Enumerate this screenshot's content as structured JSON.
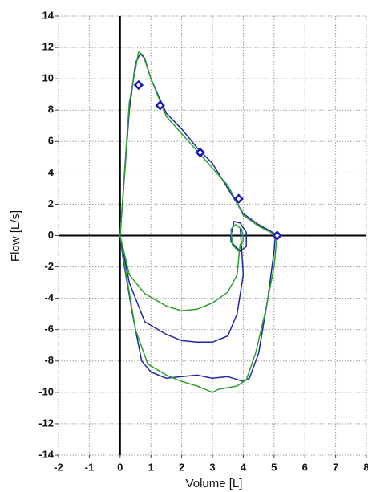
{
  "chart_data": {
    "type": "line",
    "xlabel": "Volume [L]",
    "ylabel": "Flow [L/s]",
    "xlim": [
      -2,
      8
    ],
    "ylim": [
      -14,
      14
    ],
    "xticks": [
      -2,
      -1,
      0,
      1,
      2,
      3,
      4,
      5,
      6,
      7,
      8
    ],
    "yticks": [
      -14,
      -12,
      -10,
      -8,
      -6,
      -4,
      -2,
      0,
      2,
      4,
      6,
      8,
      10,
      12,
      14
    ],
    "grid": true,
    "series": [
      {
        "color": "#1f2a9e",
        "x": [
          0,
          0.3,
          0.5,
          0.65,
          0.8,
          1.0,
          1.5,
          2.0,
          2.5,
          3.0,
          3.5,
          4.0,
          4.5,
          5.05,
          5.0,
          4.8,
          4.5,
          4.2,
          4.0,
          3.5,
          3.0,
          2.5,
          2.0,
          1.5,
          1.0,
          0.7,
          0.4,
          0.1,
          0
        ],
        "values": [
          0,
          8,
          11,
          11.6,
          11.3,
          10,
          7.8,
          6.8,
          5.6,
          4.6,
          3,
          1.4,
          0.7,
          0.1,
          -1,
          -4,
          -7.5,
          -9.1,
          -9.3,
          -9,
          -9.1,
          -8.9,
          -9,
          -9.1,
          -8.7,
          -8,
          -5,
          -1.5,
          0
        ]
      },
      {
        "color": "#2ca02c",
        "x": [
          0,
          0.3,
          0.6,
          0.75,
          1.0,
          1.5,
          2.0,
          2.5,
          3.0,
          3.5,
          4.0,
          4.5,
          5.1,
          5.0,
          4.7,
          4.4,
          4.1,
          3.8,
          3.2,
          3.0,
          2.5,
          2.0,
          1.5,
          0.9,
          0.5,
          0.2,
          0
        ],
        "values": [
          0,
          8.5,
          11.7,
          11.5,
          10,
          7.6,
          6.5,
          5.4,
          4.3,
          3.2,
          1.3,
          0.6,
          0,
          -2,
          -5,
          -7.5,
          -9.2,
          -9.6,
          -9.8,
          -10,
          -9.6,
          -9.3,
          -8.9,
          -8.2,
          -6,
          -2.5,
          0
        ]
      },
      {
        "color": "#1f2a9e",
        "x": [
          0,
          0.3,
          0.8,
          1.5,
          2.0,
          2.5,
          3.0,
          3.5,
          3.8,
          4.0,
          3.9
        ],
        "values": [
          0,
          -3,
          -5.5,
          -6.3,
          -6.7,
          -6.8,
          -6.8,
          -6.4,
          -5,
          -2.5,
          0.5
        ]
      },
      {
        "color": "#2ca02c",
        "x": [
          0,
          0.3,
          0.8,
          1.5,
          2.0,
          2.5,
          3.0,
          3.5,
          3.8,
          3.9
        ],
        "values": [
          0,
          -2.5,
          -3.7,
          -4.5,
          -4.8,
          -4.7,
          -4.3,
          -3.6,
          -2.5,
          -0.5
        ]
      },
      {
        "color": "#1f2a9e",
        "x": [
          3.6,
          3.7,
          3.9,
          4.1,
          4.1,
          3.9,
          3.6,
          3.6
        ],
        "values": [
          0,
          0.9,
          0.8,
          0.2,
          -0.7,
          -1,
          -0.4,
          0
        ]
      },
      {
        "color": "#2ca02c",
        "x": [
          3.6,
          3.75,
          3.95,
          4.0,
          3.85,
          3.65,
          3.6
        ],
        "values": [
          0.4,
          0.7,
          0.4,
          -0.3,
          -1,
          -0.6,
          0.4
        ]
      },
      {
        "color": "#1a1ab8",
        "marker": "diamond",
        "x": [
          0.6,
          1.3,
          2.6,
          3.85,
          5.1
        ],
        "values": [
          9.6,
          8.3,
          5.3,
          2.35,
          0
        ]
      }
    ]
  }
}
